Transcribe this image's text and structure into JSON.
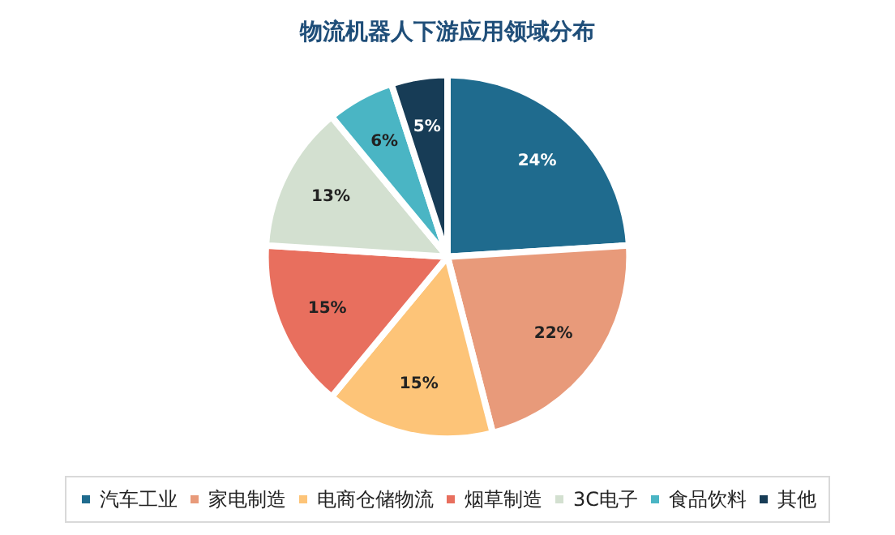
{
  "chart_data": {
    "type": "pie",
    "title": "物流机器人下游应用领域分布",
    "categories": [
      "汽车工业",
      "家电制造",
      "电商仓储物流",
      "烟草制造",
      "3C电子",
      "食品饮料",
      "其他"
    ],
    "values": [
      24,
      22,
      15,
      15,
      13,
      6,
      5
    ],
    "colors": [
      "#1f6b8e",
      "#e89a7a",
      "#fdc478",
      "#e86f5e",
      "#d3e0d0",
      "#4ab5c4",
      "#173c56"
    ],
    "value_labels": [
      "24%",
      "22%",
      "15%",
      "15%",
      "13%",
      "6%",
      "5%"
    ],
    "legend": "bottom"
  }
}
